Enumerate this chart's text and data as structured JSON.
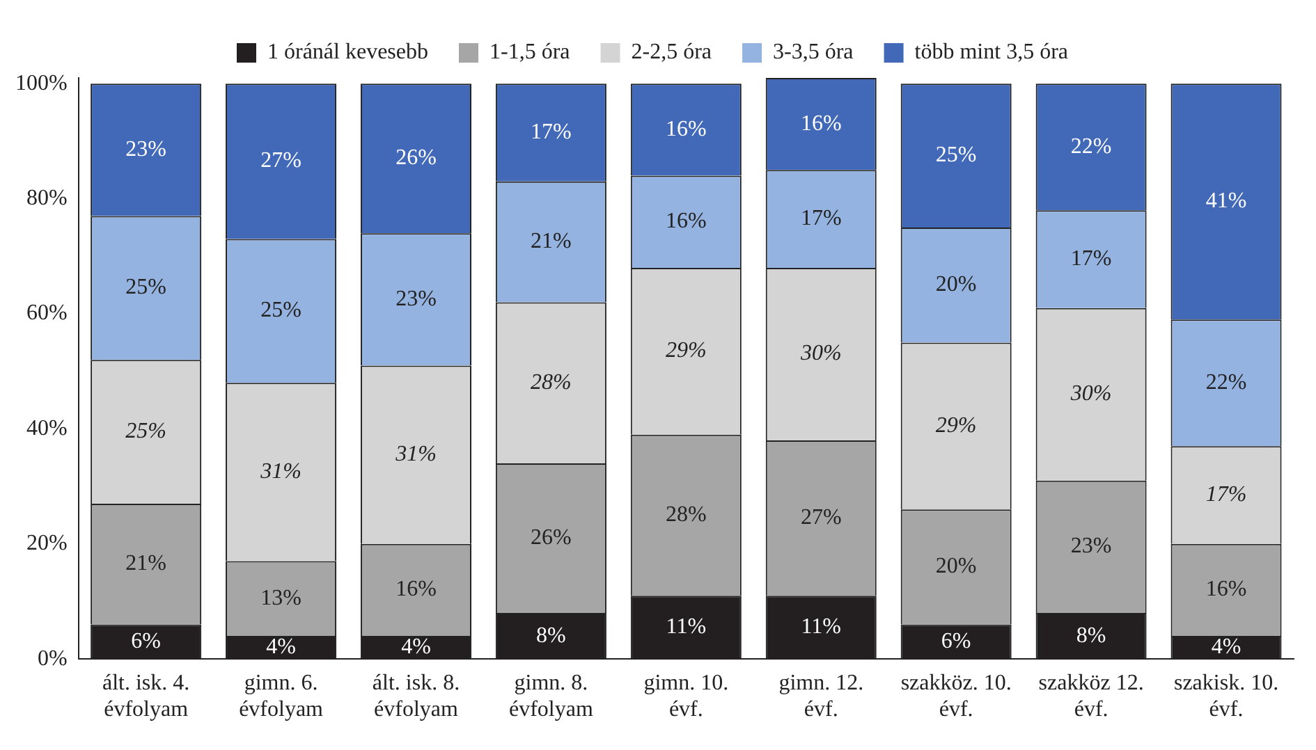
{
  "chart_data": {
    "type": "bar",
    "stacked": true,
    "categories": [
      "ált. isk. 4. évfolyam",
      "gimn. 6. évfolyam",
      "ált. isk. 8. évfolyam",
      "gimn. 8. évfolyam",
      "gimn. 10. évf.",
      "gimn. 12. évf.",
      "szakköz. 10. évf.",
      "szakköz 12. évf.",
      "szakisk. 10. évf."
    ],
    "series": [
      {
        "name": "1 óránál kevesebb",
        "color": "#231f20",
        "values": [
          6,
          4,
          4,
          8,
          11,
          11,
          6,
          8,
          4
        ],
        "value_labels": [
          "6%",
          "4%",
          "4%",
          "8%",
          "11%",
          "11%",
          "6%",
          "8%",
          "4%"
        ]
      },
      {
        "name": "1-1,5 óra",
        "color": "#a6a6a6",
        "values": [
          21,
          13,
          16,
          26,
          28,
          27,
          20,
          23,
          16
        ],
        "value_labels": [
          "21%",
          "13%",
          "16%",
          "26%",
          "28%",
          "27%",
          "20%",
          "23%",
          "16%"
        ]
      },
      {
        "name": "2-2,5 óra",
        "color": "#d4d4d4",
        "values": [
          25,
          31,
          31,
          28,
          29,
          30,
          29,
          30,
          17
        ],
        "value_labels": [
          "25%",
          "31%",
          "31%",
          "28%",
          "29%",
          "30%",
          "29%",
          "30%",
          "17%"
        ]
      },
      {
        "name": "3-3,5 óra",
        "color": "#95b3e0",
        "values": [
          25,
          25,
          23,
          21,
          16,
          17,
          20,
          17,
          22
        ],
        "value_labels": [
          "25%",
          "25%",
          "23%",
          "21%",
          "16%",
          "17%",
          "20%",
          "17%",
          "22%"
        ]
      },
      {
        "name": "több mint 3,5 óra",
        "color": "#4169b8",
        "values": [
          23,
          27,
          26,
          17,
          16,
          16,
          25,
          22,
          41
        ],
        "value_labels": [
          "23%",
          "27%",
          "26%",
          "17%",
          "16%",
          "16%",
          "25%",
          "22%",
          "41%"
        ]
      }
    ],
    "ylim": [
      0,
      101
    ],
    "yticks": [
      {
        "value": 0,
        "label": "0%"
      },
      {
        "value": 20,
        "label": "20%"
      },
      {
        "value": 40,
        "label": "40%"
      },
      {
        "value": 60,
        "label": "60%"
      },
      {
        "value": 80,
        "label": "80%"
      },
      {
        "value": 100,
        "label": "100%"
      }
    ],
    "grid": false,
    "legend": "top"
  }
}
